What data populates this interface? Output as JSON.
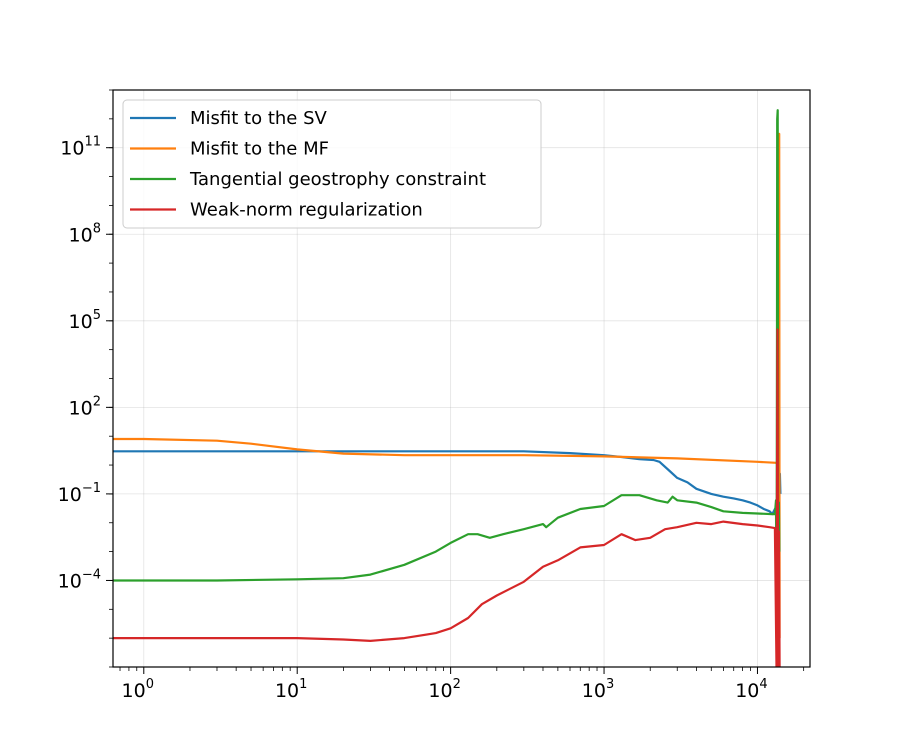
{
  "chart_data": {
    "type": "line",
    "title": "",
    "xlabel": "",
    "ylabel": "",
    "x_scale": "log",
    "y_scale": "log",
    "xlim": [
      0.63,
      22000
    ],
    "ylim": [
      1e-07,
      10000000000000.0
    ],
    "grid": true,
    "legend_position": "top-left",
    "x_ticks": [
      {
        "base": "10",
        "exp": "0",
        "value": 1
      },
      {
        "base": "10",
        "exp": "1",
        "value": 10
      },
      {
        "base": "10",
        "exp": "2",
        "value": 100
      },
      {
        "base": "10",
        "exp": "3",
        "value": 1000
      },
      {
        "base": "10",
        "exp": "4",
        "value": 10000
      }
    ],
    "y_ticks": [
      {
        "base": "10",
        "exp": "−4",
        "value": 0.0001
      },
      {
        "base": "10",
        "exp": "−1",
        "value": 0.1
      },
      {
        "base": "10",
        "exp": "2",
        "value": 100
      },
      {
        "base": "10",
        "exp": "5",
        "value": 100000
      },
      {
        "base": "10",
        "exp": "8",
        "value": 100000000
      },
      {
        "base": "10",
        "exp": "11",
        "value": 100000000000
      }
    ],
    "series": [
      {
        "name": "Misfit to the SV",
        "color": "#1f77b4",
        "points": [
          [
            0.63,
            3.0
          ],
          [
            1,
            3.0
          ],
          [
            3,
            3.0
          ],
          [
            10,
            3.0
          ],
          [
            30,
            3.0
          ],
          [
            100,
            3.0
          ],
          [
            300,
            3.0
          ],
          [
            600,
            2.6
          ],
          [
            1000,
            2.2
          ],
          [
            1300,
            1.9
          ],
          [
            1700,
            1.6
          ],
          [
            2100,
            1.5
          ],
          [
            2300,
            1.3
          ],
          [
            2700,
            0.6
          ],
          [
            3000,
            0.36
          ],
          [
            3500,
            0.25
          ],
          [
            4000,
            0.15
          ],
          [
            5000,
            0.1
          ],
          [
            6000,
            0.08
          ],
          [
            7000,
            0.07
          ],
          [
            8000,
            0.06
          ],
          [
            9000,
            0.05
          ],
          [
            10000,
            0.04
          ],
          [
            11000,
            0.03
          ],
          [
            12000,
            0.025
          ],
          [
            12500,
            0.02
          ],
          [
            13000,
            0.03
          ],
          [
            13500,
            0.04
          ],
          [
            13800,
            0.2
          ],
          [
            14000,
            0.5
          ],
          [
            14100,
            0.1
          ]
        ]
      },
      {
        "name": "Misfit to the MF",
        "color": "#ff7f0e",
        "points": [
          [
            0.63,
            8.0
          ],
          [
            1,
            8.0
          ],
          [
            3,
            7.0
          ],
          [
            5,
            5.5
          ],
          [
            10,
            3.5
          ],
          [
            20,
            2.5
          ],
          [
            50,
            2.2
          ],
          [
            100,
            2.2
          ],
          [
            300,
            2.2
          ],
          [
            1000,
            2.0
          ],
          [
            3000,
            1.7
          ],
          [
            10000,
            1.3
          ],
          [
            13200,
            1.2
          ],
          [
            13600,
            1.1
          ],
          [
            13700,
            20000
          ],
          [
            13750,
            0.001
          ],
          [
            13850,
            300000000000.0
          ],
          [
            13950,
            1e-06
          ]
        ]
      },
      {
        "name": "Tangential geostrophy constraint",
        "color": "#2ca02c",
        "points": [
          [
            0.63,
            0.0001
          ],
          [
            1,
            0.0001
          ],
          [
            3,
            0.0001
          ],
          [
            10,
            0.00011
          ],
          [
            20,
            0.00012
          ],
          [
            30,
            0.00016
          ],
          [
            50,
            0.00035
          ],
          [
            80,
            0.001
          ],
          [
            100,
            0.002
          ],
          [
            130,
            0.004
          ],
          [
            150,
            0.004
          ],
          [
            180,
            0.003
          ],
          [
            220,
            0.004
          ],
          [
            300,
            0.006
          ],
          [
            400,
            0.009
          ],
          [
            420,
            0.007
          ],
          [
            500,
            0.015
          ],
          [
            700,
            0.03
          ],
          [
            1000,
            0.038
          ],
          [
            1300,
            0.09
          ],
          [
            1700,
            0.09
          ],
          [
            2200,
            0.06
          ],
          [
            2600,
            0.05
          ],
          [
            2800,
            0.08
          ],
          [
            3000,
            0.06
          ],
          [
            4000,
            0.05
          ],
          [
            5000,
            0.035
          ],
          [
            6000,
            0.025
          ],
          [
            8000,
            0.022
          ],
          [
            10000,
            0.021
          ],
          [
            12500,
            0.02
          ],
          [
            13000,
            0.02
          ],
          [
            13200,
            0.06
          ],
          [
            13300,
            1e-06
          ],
          [
            13400,
            50000.0
          ],
          [
            13450,
            1000000000000.0
          ],
          [
            13550,
            2000000000000.0
          ],
          [
            13650,
            1e-06
          ],
          [
            13800,
            0.05
          ],
          [
            13900,
            0.001
          ]
        ]
      },
      {
        "name": "Weak-norm regularization",
        "color": "#d62728",
        "points": [
          [
            0.63,
            1e-06
          ],
          [
            1,
            1e-06
          ],
          [
            3,
            1e-06
          ],
          [
            10,
            1e-06
          ],
          [
            20,
            9e-07
          ],
          [
            30,
            8e-07
          ],
          [
            50,
            1e-06
          ],
          [
            80,
            1.5e-06
          ],
          [
            100,
            2.2e-06
          ],
          [
            130,
            5e-06
          ],
          [
            160,
            1.5e-05
          ],
          [
            200,
            3e-05
          ],
          [
            300,
            9e-05
          ],
          [
            400,
            0.0003
          ],
          [
            500,
            0.0005
          ],
          [
            700,
            0.0014
          ],
          [
            1000,
            0.0017
          ],
          [
            1300,
            0.004
          ],
          [
            1600,
            0.0025
          ],
          [
            2000,
            0.003
          ],
          [
            2500,
            0.006
          ],
          [
            3000,
            0.007
          ],
          [
            4000,
            0.01
          ],
          [
            5000,
            0.009
          ],
          [
            6000,
            0.011
          ],
          [
            8000,
            0.009
          ],
          [
            10000,
            0.008
          ],
          [
            12000,
            0.007
          ],
          [
            13000,
            0.0065
          ],
          [
            13300,
            1e-07
          ],
          [
            13500,
            50000.0
          ],
          [
            13650,
            1e-07
          ],
          [
            13800,
            0.005
          ],
          [
            13950,
            1e-07
          ]
        ]
      }
    ]
  }
}
